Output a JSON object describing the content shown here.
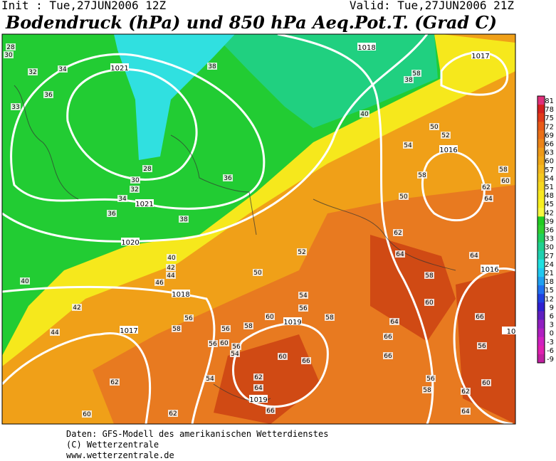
{
  "header": {
    "init": "Init : Tue,27JUN2006 12Z",
    "valid": "Valid: Tue,27JUN2006 21Z",
    "title": "Bodendruck (hPa) und 850 hPa Aeq.Pot.T. (Grad C)"
  },
  "colorbar": {
    "labels": [
      "81",
      "78",
      "75",
      "72",
      "69",
      "66",
      "63",
      "60",
      "57",
      "54",
      "51",
      "48",
      "45",
      "42",
      "39",
      "36",
      "33",
      "30",
      "27",
      "24",
      "21",
      "18",
      "15",
      "12",
      "9",
      "6",
      "3",
      "0",
      "-3",
      "-6",
      "-9"
    ],
    "colors": [
      "#e0307a",
      "#d42020",
      "#e03a1a",
      "#e85a18",
      "#ea7018",
      "#ec8418",
      "#ee9a18",
      "#f0a818",
      "#f4b820",
      "#f4c820",
      "#f6d820",
      "#f8e820",
      "#f8f020",
      "#f8f840",
      "#22cc22",
      "#30d030",
      "#20d060",
      "#20d090",
      "#20d0b0",
      "#20e0e0",
      "#20c8f0",
      "#20a0f0",
      "#2070f0",
      "#2040e0",
      "#3020d0",
      "#6020c0",
      "#9020c0",
      "#b020c0",
      "#d020c0",
      "#e020b0",
      "#c020a0"
    ]
  },
  "map": {
    "isobars": [
      "1021",
      "1021",
      "1020",
      "1018",
      "1018",
      "1017",
      "1016",
      "1016",
      "1019",
      "1017",
      "1019",
      "10"
    ],
    "labels": [
      "28",
      "30",
      "34",
      "32",
      "36",
      "33",
      "38",
      "28",
      "30",
      "32",
      "34",
      "36",
      "38",
      "36",
      "38",
      "40",
      "58",
      "50",
      "52",
      "54",
      "58",
      "50",
      "58",
      "60",
      "62",
      "64",
      "62",
      "64",
      "52",
      "50",
      "40",
      "42",
      "44",
      "46",
      "40",
      "42",
      "44",
      "54",
      "56",
      "58",
      "60",
      "58",
      "56",
      "60",
      "56",
      "54",
      "56",
      "58",
      "56",
      "62",
      "60",
      "62",
      "62",
      "60",
      "66",
      "64",
      "66",
      "54",
      "58",
      "60",
      "64",
      "66",
      "64",
      "66",
      "56",
      "60",
      "62",
      "66",
      "56",
      "58",
      "64"
    ]
  },
  "footer": {
    "lines": [
      "Daten: GFS-Modell des amerikanischen Wetterdienstes",
      "(C) Wetterzentrale",
      "www.wetterzentrale.de"
    ]
  }
}
